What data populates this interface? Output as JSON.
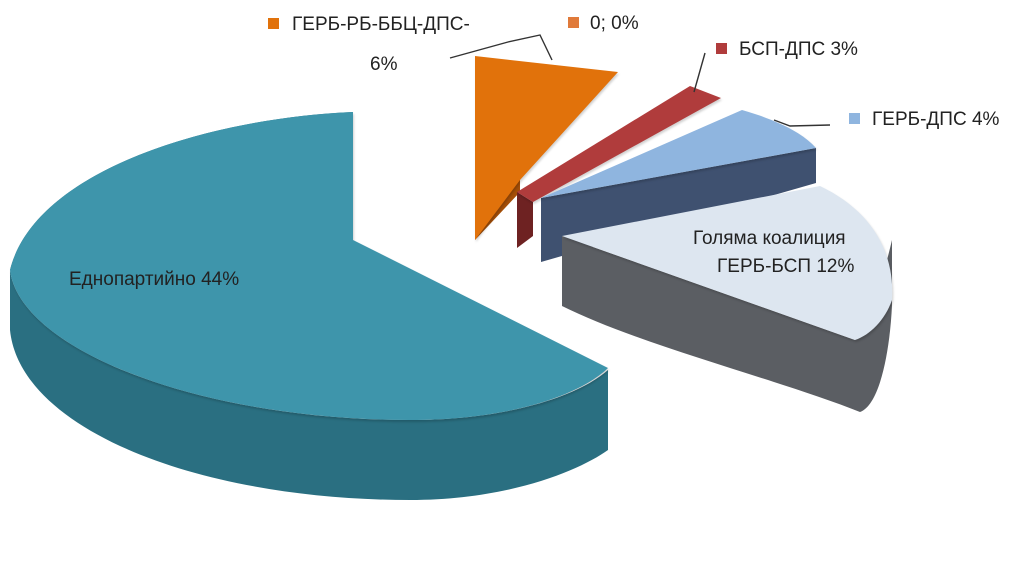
{
  "chart_data": {
    "type": "pie",
    "slices": [
      {
        "label": "Еднопартийно 44%",
        "value": 44,
        "color": "#3e95ab",
        "side": "#2a6f81"
      },
      {
        "label": "ГЕРБ-РБ-ББЦ-ДПС- 6%",
        "label_lines": [
          "ГЕРБ-РБ-ББЦ-ДПС-",
          "6%"
        ],
        "value": 6,
        "color": "#e1720b",
        "side": "#a54f08"
      },
      {
        "label": "0; 0%",
        "value": 0,
        "color": "#e07a3a",
        "side": "#a55a2a"
      },
      {
        "label": "БСП-ДПС 3%",
        "value": 3,
        "color": "#b03c3c",
        "side": "#6e2222"
      },
      {
        "label": "ГЕРБ-ДПС 4%",
        "value": 4,
        "color": "#8fb5df",
        "side": "#3f5170"
      },
      {
        "label": "Голяма коалиция ГЕРБ-БСП 12%",
        "label_lines": [
          "Голяма коалиция",
          "ГЕРБ-БСП 12%"
        ],
        "value": 12,
        "color": "#dde6f0",
        "side": "#5b5e63"
      }
    ]
  }
}
